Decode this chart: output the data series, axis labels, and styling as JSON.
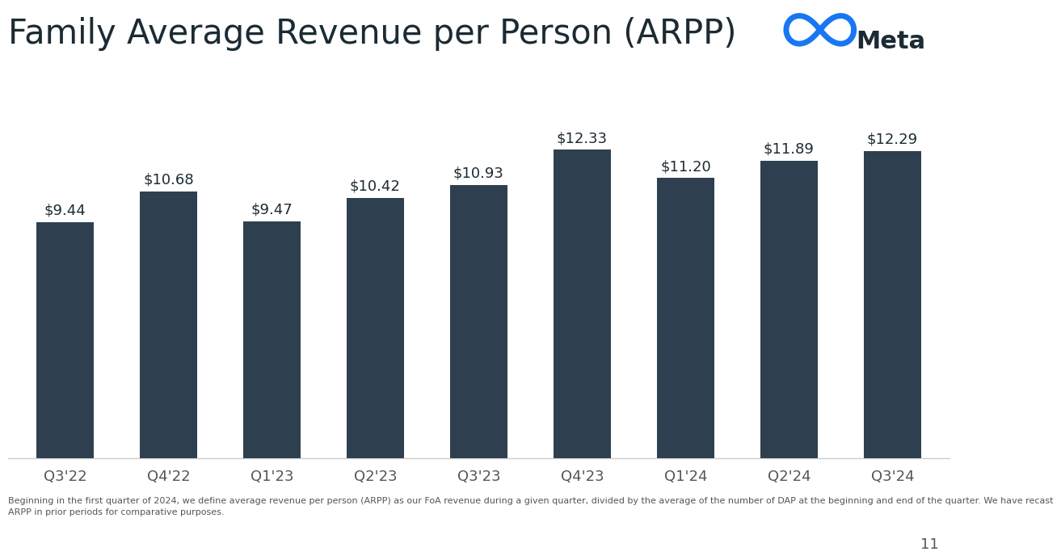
{
  "title": "Family Average Revenue per Person (ARPP)",
  "categories": [
    "Q3'22",
    "Q4'22",
    "Q1'23",
    "Q2'23",
    "Q3'23",
    "Q4'23",
    "Q1'24",
    "Q2'24",
    "Q3'24"
  ],
  "values": [
    9.44,
    10.68,
    9.47,
    10.42,
    10.93,
    12.33,
    11.2,
    11.89,
    12.29
  ],
  "bar_color": "#2e404f",
  "background_color": "#ffffff",
  "title_fontsize": 30,
  "label_fontsize": 13,
  "tick_fontsize": 13,
  "footer_text": "Beginning in the first quarter of 2024, we define average revenue per person (ARPP) as our FoA revenue during a given quarter, divided by the average of the number of DAP at the beginning and end of the quarter. We have recast\nARPP in prior periods for comparative purposes.",
  "footer_fontsize": 8,
  "page_number": "11",
  "meta_color": "#1c2b33",
  "meta_logo_color": "#1877f2",
  "ylim": [
    0,
    14.5
  ],
  "bar_width": 0.55
}
